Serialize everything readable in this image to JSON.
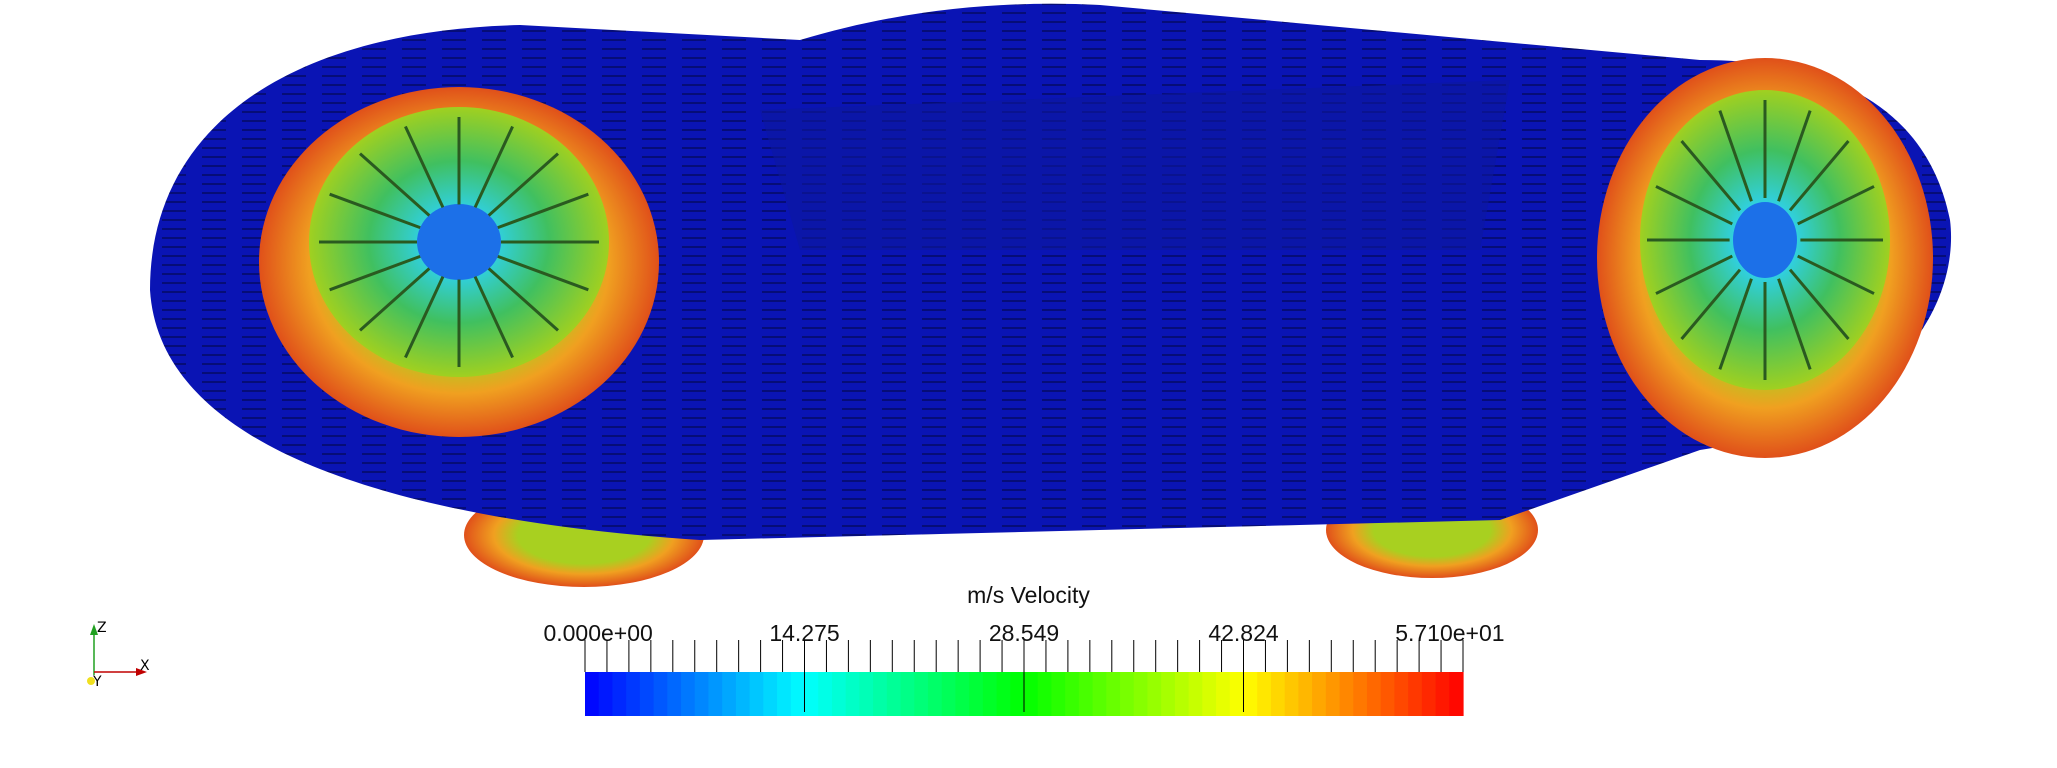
{
  "colorbar": {
    "title": "m/s Velocity",
    "labels": [
      "0.000e+00",
      "14.275",
      "28.549",
      "42.824",
      "5.710e+01"
    ],
    "range": [
      0,
      57.1
    ],
    "colormap": [
      "#0000ff",
      "#00ffff",
      "#00ff00",
      "#ffff00",
      "#ff0000"
    ],
    "minor_tick_count": 41
  },
  "axes_triad": {
    "x_label": "X",
    "y_label": "Y",
    "z_label": "Z",
    "x_color": "#c00000",
    "y_color": "#f0e020",
    "z_color": "#20a020"
  },
  "scene": {
    "body_color": "#0a14b4",
    "wheel_color": "#e86a1a",
    "rim_color": "#9ad02a",
    "hub_color": "#30c8e0"
  }
}
